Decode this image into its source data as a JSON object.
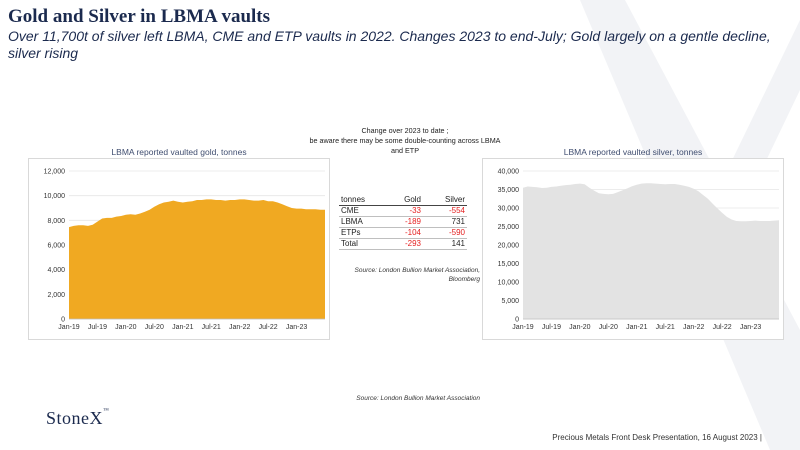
{
  "title": "Gold and Silver in LBMA vaults",
  "subtitle": "Over 11,700t of silver left LBMA, CME and ETP vaults in 2022. Changes 2023 to end-July; Gold largely on a gentle decline, silver rising",
  "note": {
    "line1": "Change over 2023 to date ;",
    "line2": "be aware there may be some double-counting across LBMA",
    "line3": "and ETP"
  },
  "table": {
    "headers": [
      "tonnes",
      "Gold",
      "Silver"
    ],
    "rows": [
      {
        "label": "CME",
        "gold": "-33",
        "silver": "-554"
      },
      {
        "label": "LBMA",
        "gold": "-189",
        "silver": "731"
      },
      {
        "label": "ETPs",
        "gold": "-104",
        "silver": "-590"
      },
      {
        "label": "Total",
        "gold": "-293",
        "silver": "141"
      }
    ],
    "negative_color": "#e41e1e"
  },
  "source_table": {
    "line1": "Source: London Bullion Market Association,",
    "line2": "Bloomberg"
  },
  "source_charts": "Source: London Bullion Market Association",
  "logo": {
    "text": "StoneX",
    "mark": "™"
  },
  "footer": "Precious Metals Front Desk Presentation, 16 August 2023 |",
  "chart_data": [
    {
      "type": "area",
      "title": "LBMA reported vaulted gold, tonnes",
      "color": "#f0a922",
      "xlabel": "",
      "ylabel": "",
      "ylim": [
        0,
        12000
      ],
      "yticks": [
        "0",
        "2,000",
        "4,000",
        "6,000",
        "8,000",
        "10,000",
        "12,000"
      ],
      "xticks": [
        "Jan-19",
        "Jul-19",
        "Jan-20",
        "Jul-20",
        "Jan-21",
        "Jul-21",
        "Jan-22",
        "Jul-22",
        "Jan-23"
      ],
      "grid": true,
      "x": [
        0,
        1,
        2,
        3,
        4,
        5,
        6,
        7,
        8,
        9,
        10,
        11,
        12,
        13,
        14,
        15,
        16,
        17,
        18,
        19,
        20,
        21,
        22,
        23,
        24,
        25,
        26,
        27,
        28,
        29,
        30,
        31,
        32,
        33,
        34,
        35,
        36,
        37,
        38,
        39,
        40,
        41,
        42,
        43,
        44,
        45,
        46,
        47,
        48,
        49,
        50,
        51,
        52,
        53,
        54
      ],
      "values": [
        7450,
        7550,
        7600,
        7600,
        7550,
        7650,
        7900,
        8150,
        8200,
        8200,
        8300,
        8350,
        8450,
        8500,
        8450,
        8550,
        8700,
        8850,
        9100,
        9300,
        9450,
        9500,
        9600,
        9500,
        9450,
        9500,
        9550,
        9650,
        9650,
        9700,
        9700,
        9650,
        9650,
        9600,
        9650,
        9650,
        9700,
        9700,
        9650,
        9600,
        9600,
        9650,
        9550,
        9550,
        9450,
        9300,
        9150,
        9000,
        8950,
        8950,
        8900,
        8900,
        8900,
        8850,
        8850
      ]
    },
    {
      "type": "area",
      "title": "LBMA reported vaulted silver, tonnes",
      "color": "#e3e3e3",
      "xlabel": "",
      "ylabel": "",
      "ylim": [
        0,
        40000
      ],
      "yticks": [
        "0",
        "5,000",
        "10,000",
        "15,000",
        "20,000",
        "25,000",
        "30,000",
        "35,000",
        "40,000"
      ],
      "xticks": [
        "Jan-19",
        "Jul-19",
        "Jan-20",
        "Jul-20",
        "Jan-21",
        "Jul-21",
        "Jan-22",
        "Jul-22",
        "Jan-23"
      ],
      "grid": true,
      "x": [
        0,
        1,
        2,
        3,
        4,
        5,
        6,
        7,
        8,
        9,
        10,
        11,
        12,
        13,
        14,
        15,
        16,
        17,
        18,
        19,
        20,
        21,
        22,
        23,
        24,
        25,
        26,
        27,
        28,
        29,
        30,
        31,
        32,
        33,
        34,
        35,
        36,
        37,
        38,
        39,
        40,
        41,
        42,
        43,
        44,
        45,
        46,
        47,
        48,
        49,
        50,
        51,
        52,
        53,
        54
      ],
      "values": [
        35500,
        35800,
        35700,
        35600,
        35400,
        35500,
        35700,
        35800,
        36000,
        36200,
        36300,
        36500,
        36600,
        36400,
        35500,
        34700,
        34000,
        33800,
        33700,
        33800,
        34300,
        34800,
        35300,
        35900,
        36300,
        36600,
        36700,
        36700,
        36600,
        36500,
        36400,
        36500,
        36500,
        36300,
        36000,
        35700,
        35200,
        34500,
        33500,
        32500,
        31200,
        29900,
        28700,
        27600,
        26900,
        26500,
        26400,
        26400,
        26500,
        26600,
        26500,
        26500,
        26500,
        26600,
        26700
      ]
    }
  ]
}
